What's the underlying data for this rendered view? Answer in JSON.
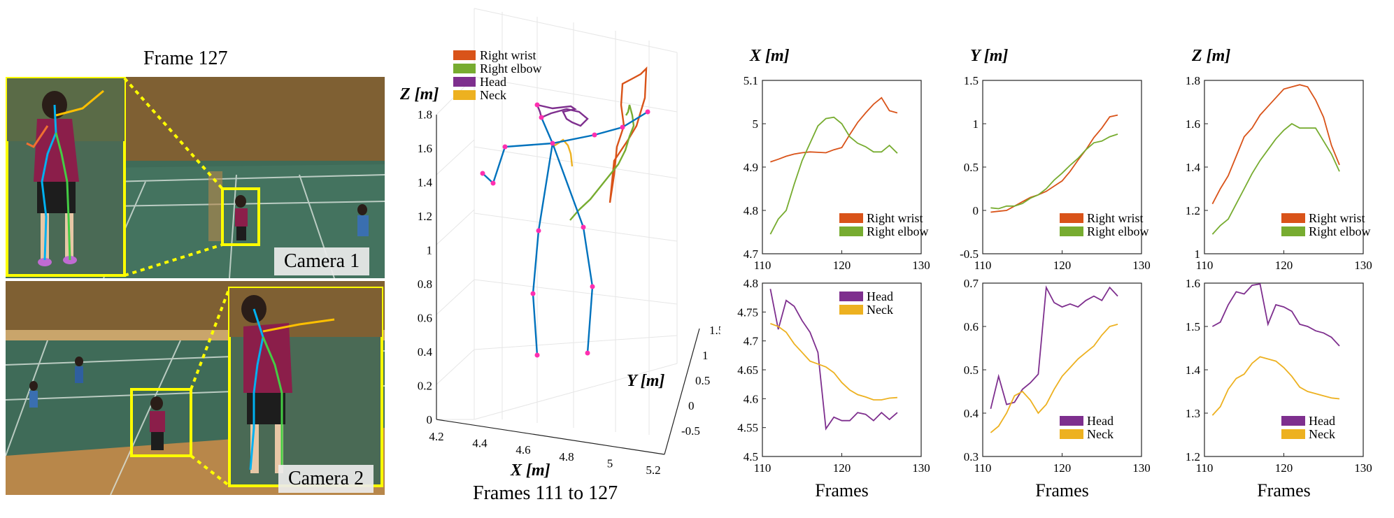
{
  "photos": {
    "frame_title": "Frame 127",
    "camera1_label": "Camera 1",
    "camera2_label": "Camera 2",
    "colors": {
      "highlight": "#ffff00",
      "court": "#3f6b58",
      "wall": "#7a5a2e",
      "shirt": "#8b1e4a"
    }
  },
  "plot3d": {
    "caption": "Frames 111 to 127",
    "zlabel": "Z [m]",
    "xlabel": "X [m]",
    "ylabel": "Y [m]",
    "zticks": [
      "0",
      "0.2",
      "0.4",
      "0.6",
      "0.8",
      "1",
      "1.2",
      "1.4",
      "1.6",
      "1.8"
    ],
    "xticks": [
      "4.2",
      "4.4",
      "4.6",
      "4.8",
      "5",
      "5.2"
    ],
    "yticks": [
      "-0.5",
      "0",
      "0.5",
      "1",
      "1.5"
    ],
    "legend": [
      {
        "label": "Right wrist",
        "color": "#d95319"
      },
      {
        "label": "Right elbow",
        "color": "#77ac30"
      },
      {
        "label": "Head",
        "color": "#7e2f8e"
      },
      {
        "label": "Neck",
        "color": "#edb120"
      }
    ]
  },
  "chart_data": [
    {
      "type": "line",
      "title": "X [m]",
      "xlabel": "",
      "xlim": [
        110,
        130
      ],
      "ylim": [
        4.7,
        5.1
      ],
      "xticks": [
        110,
        120,
        130
      ],
      "yticks": [
        4.7,
        4.8,
        4.9,
        5,
        5.1
      ],
      "ytick_labels": [
        "4.7",
        "4.8",
        "4.9",
        "5",
        "5.1"
      ],
      "x": [
        111,
        112,
        113,
        114,
        115,
        116,
        117,
        118,
        119,
        120,
        121,
        122,
        123,
        124,
        125,
        126,
        127
      ],
      "legend_pos": "bottom-right",
      "series": [
        {
          "name": "Right wrist",
          "color": "#d95319",
          "values": [
            4.912,
            4.918,
            4.925,
            4.93,
            4.933,
            4.935,
            4.934,
            4.933,
            4.94,
            4.945,
            4.975,
            5.003,
            5.025,
            5.045,
            5.06,
            5.03,
            5.025
          ]
        },
        {
          "name": "Right elbow",
          "color": "#77ac30",
          "values": [
            4.745,
            4.78,
            4.8,
            4.86,
            4.915,
            4.955,
            4.995,
            5.012,
            5.015,
            5.0,
            4.97,
            4.955,
            4.947,
            4.935,
            4.935,
            4.95,
            4.932
          ]
        }
      ]
    },
    {
      "type": "line",
      "title": "Y [m]",
      "xlabel": "",
      "xlim": [
        110,
        130
      ],
      "ylim": [
        -0.5,
        1.5
      ],
      "xticks": [
        110,
        120,
        130
      ],
      "yticks": [
        -0.5,
        0,
        0.5,
        1,
        1.5
      ],
      "ytick_labels": [
        "-0.5",
        "0",
        "0.5",
        "1",
        "1.5"
      ],
      "x": [
        111,
        112,
        113,
        114,
        115,
        116,
        117,
        118,
        119,
        120,
        121,
        122,
        123,
        124,
        125,
        126,
        127
      ],
      "legend_pos": "bottom-right",
      "series": [
        {
          "name": "Right wrist",
          "color": "#d95319",
          "values": [
            -0.02,
            -0.01,
            0.0,
            0.05,
            0.1,
            0.15,
            0.18,
            0.22,
            0.28,
            0.34,
            0.45,
            0.58,
            0.7,
            0.84,
            0.95,
            1.08,
            1.1
          ]
        },
        {
          "name": "Right elbow",
          "color": "#77ac30",
          "values": [
            0.03,
            0.02,
            0.05,
            0.05,
            0.08,
            0.14,
            0.18,
            0.25,
            0.35,
            0.43,
            0.52,
            0.6,
            0.7,
            0.78,
            0.8,
            0.85,
            0.88
          ]
        }
      ]
    },
    {
      "type": "line",
      "title": "Z [m]",
      "xlabel": "",
      "xlim": [
        110,
        130
      ],
      "ylim": [
        1.0,
        1.8
      ],
      "xticks": [
        110,
        120,
        130
      ],
      "yticks": [
        1.0,
        1.2,
        1.4,
        1.6,
        1.8
      ],
      "ytick_labels": [
        "1",
        "1.2",
        "1.4",
        "1.6",
        "1.8"
      ],
      "x": [
        111,
        112,
        113,
        114,
        115,
        116,
        117,
        118,
        119,
        120,
        121,
        122,
        123,
        124,
        125,
        126,
        127
      ],
      "legend_pos": "bottom-right",
      "series": [
        {
          "name": "Right wrist",
          "color": "#d95319",
          "values": [
            1.23,
            1.3,
            1.36,
            1.45,
            1.54,
            1.58,
            1.64,
            1.68,
            1.72,
            1.76,
            1.77,
            1.78,
            1.77,
            1.71,
            1.63,
            1.5,
            1.41
          ]
        },
        {
          "name": "Right elbow",
          "color": "#77ac30",
          "values": [
            1.09,
            1.13,
            1.16,
            1.23,
            1.3,
            1.37,
            1.43,
            1.48,
            1.53,
            1.57,
            1.6,
            1.58,
            1.58,
            1.58,
            1.52,
            1.46,
            1.38
          ]
        }
      ]
    },
    {
      "type": "line",
      "title": "",
      "xlabel": "Frames",
      "xlim": [
        110,
        130
      ],
      "ylim": [
        4.5,
        4.8
      ],
      "xticks": [
        110,
        120,
        130
      ],
      "yticks": [
        4.5,
        4.55,
        4.6,
        4.65,
        4.7,
        4.75,
        4.8
      ],
      "ytick_labels": [
        "4.5",
        "4.55",
        "4.6",
        "4.65",
        "4.7",
        "4.75",
        "4.8"
      ],
      "x": [
        111,
        112,
        113,
        114,
        115,
        116,
        117,
        118,
        119,
        120,
        121,
        122,
        123,
        124,
        125,
        126,
        127
      ],
      "legend_pos": "top-right",
      "series": [
        {
          "name": "Head",
          "color": "#7e2f8e",
          "values": [
            4.79,
            4.72,
            4.77,
            4.76,
            4.735,
            4.715,
            4.68,
            4.548,
            4.568,
            4.562,
            4.562,
            4.576,
            4.573,
            4.562,
            4.576,
            4.564,
            4.576
          ]
        },
        {
          "name": "Neck",
          "color": "#edb120",
          "values": [
            4.73,
            4.725,
            4.715,
            4.695,
            4.68,
            4.665,
            4.66,
            4.655,
            4.645,
            4.628,
            4.615,
            4.607,
            4.603,
            4.598,
            4.598,
            4.601,
            4.602
          ]
        }
      ]
    },
    {
      "type": "line",
      "title": "",
      "xlabel": "Frames",
      "xlim": [
        110,
        130
      ],
      "ylim": [
        0.3,
        0.7
      ],
      "xticks": [
        110,
        120,
        130
      ],
      "yticks": [
        0.3,
        0.4,
        0.5,
        0.6,
        0.7
      ],
      "ytick_labels": [
        "0.3",
        "0.4",
        "0.5",
        "0.6",
        "0.7"
      ],
      "x": [
        111,
        112,
        113,
        114,
        115,
        116,
        117,
        118,
        119,
        120,
        121,
        122,
        123,
        124,
        125,
        126,
        127
      ],
      "legend_pos": "bottom-right",
      "series": [
        {
          "name": "Head",
          "color": "#7e2f8e",
          "values": [
            0.41,
            0.485,
            0.42,
            0.425,
            0.455,
            0.47,
            0.49,
            0.69,
            0.655,
            0.645,
            0.652,
            0.645,
            0.66,
            0.67,
            0.66,
            0.69,
            0.67
          ]
        },
        {
          "name": "Neck",
          "color": "#edb120",
          "values": [
            0.355,
            0.37,
            0.4,
            0.44,
            0.45,
            0.43,
            0.4,
            0.42,
            0.455,
            0.485,
            0.505,
            0.525,
            0.54,
            0.555,
            0.58,
            0.6,
            0.605
          ]
        }
      ]
    },
    {
      "type": "line",
      "title": "",
      "xlabel": "Frames",
      "xlim": [
        110,
        130
      ],
      "ylim": [
        1.2,
        1.6
      ],
      "xticks": [
        110,
        120,
        130
      ],
      "yticks": [
        1.2,
        1.3,
        1.4,
        1.5,
        1.6
      ],
      "ytick_labels": [
        "1.2",
        "1.3",
        "1.4",
        "1.5",
        "1.6"
      ],
      "x": [
        111,
        112,
        113,
        114,
        115,
        116,
        117,
        118,
        119,
        120,
        121,
        122,
        123,
        124,
        125,
        126,
        127
      ],
      "legend_pos": "bottom-right",
      "series": [
        {
          "name": "Head",
          "color": "#7e2f8e",
          "values": [
            1.5,
            1.51,
            1.55,
            1.58,
            1.575,
            1.595,
            1.598,
            1.505,
            1.55,
            1.545,
            1.535,
            1.505,
            1.5,
            1.49,
            1.485,
            1.475,
            1.455
          ]
        },
        {
          "name": "Neck",
          "color": "#edb120",
          "values": [
            1.295,
            1.315,
            1.355,
            1.38,
            1.39,
            1.415,
            1.43,
            1.425,
            1.42,
            1.405,
            1.385,
            1.36,
            1.35,
            1.345,
            1.34,
            1.335,
            1.333
          ]
        }
      ]
    }
  ]
}
